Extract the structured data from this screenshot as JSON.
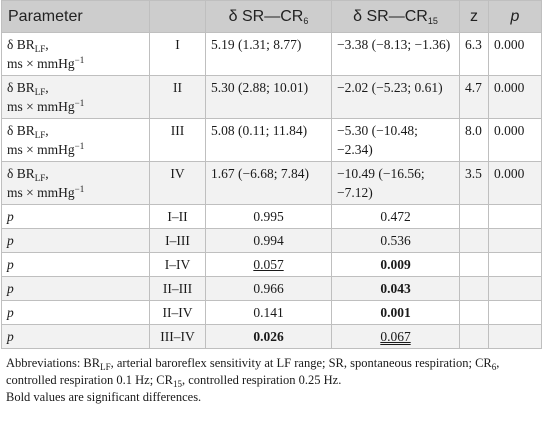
{
  "table": {
    "headers": {
      "parameter": "Parameter",
      "blank": "",
      "sr_cr6_prefix": "δ SR—CR",
      "sr_cr6_sub": "6",
      "sr_cr15_prefix": "δ SR—CR",
      "sr_cr15_sub": "15",
      "z": "z",
      "p": "p"
    },
    "param_label": {
      "delta": "δ BR",
      "sub": "LF",
      "comma": ",",
      "unit_prefix": "ms × mmHg",
      "unit_sup": "−1"
    },
    "rows": [
      {
        "group": "I",
        "cr6": "5.19 (1.31; 8.77)",
        "cr15": "−3.38 (−8.13; −1.36)",
        "z": "6.3",
        "p": "0.000"
      },
      {
        "group": "II",
        "cr6": "5.30 (2.88; 10.01)",
        "cr15": "−2.02 (−5.23; 0.61)",
        "z": "4.7",
        "p": "0.000"
      },
      {
        "group": "III",
        "cr6": "5.08 (0.11; 11.84)",
        "cr15": "−5.30 (−10.48; −2.34)",
        "z": "8.0",
        "p": "0.000"
      },
      {
        "group": "IV",
        "cr6": "1.67 (−6.68; 7.84)",
        "cr15": "−10.49 (−16.56; −7.12)",
        "z": "3.5",
        "p": "0.000"
      }
    ],
    "p_rows": [
      {
        "label": "p",
        "pair": "I–II",
        "cr6": "0.995",
        "cr15": "0.472"
      },
      {
        "label": "p",
        "pair": "I–III",
        "cr6": "0.994",
        "cr15": "0.536"
      },
      {
        "label": "p",
        "pair": "I–IV",
        "cr6": "0.057",
        "cr15": "0.009"
      },
      {
        "label": "p",
        "pair": "II–III",
        "cr6": "0.966",
        "cr15": "0.043"
      },
      {
        "label": "p",
        "pair": "II–IV",
        "cr6": "0.141",
        "cr15": "0.001"
      },
      {
        "label": "p",
        "pair": "III–IV",
        "cr6": "0.026",
        "cr15": "0.067"
      }
    ]
  },
  "footnote": {
    "abbr_prefix": "Abbreviations: BR",
    "abbr_sub1": "LF",
    "abbr_mid1": ", arterial baroreflex sensitivity at LF range; SR, spontaneous respiration; CR",
    "abbr_sub2": "6",
    "abbr_mid2": ", controlled respiration 0.1 Hz; CR",
    "abbr_sub3": "15",
    "abbr_end": ", controlled respiration 0.25 Hz.",
    "bold_note": "Bold values are significant differences."
  }
}
